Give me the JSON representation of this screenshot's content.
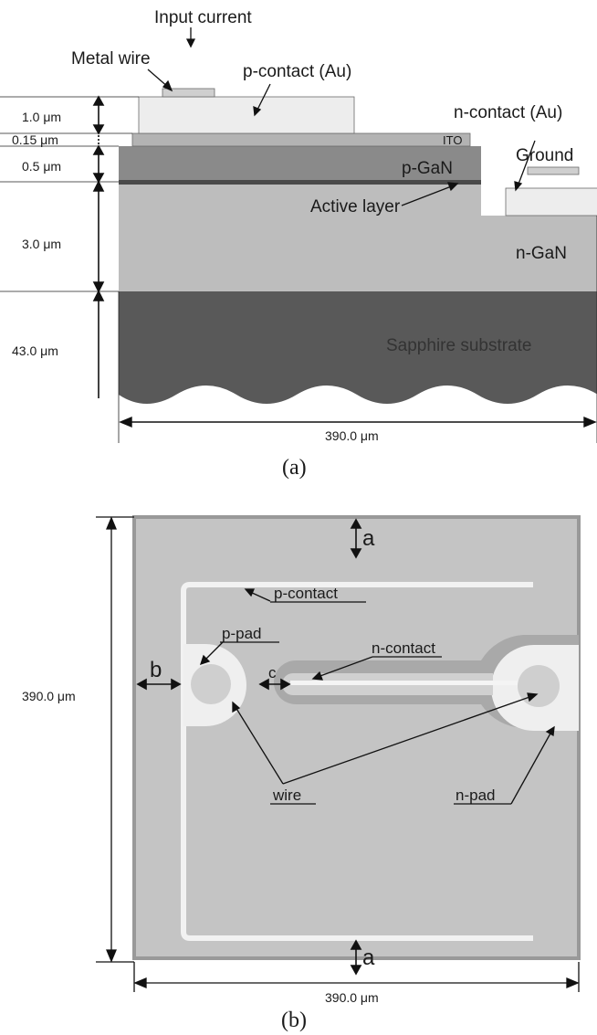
{
  "panel_a": {
    "caption": "(a)",
    "labels": {
      "input_current": "Input current",
      "metal_wire": "Metal  wire",
      "p_contact": "p-contact (Au)",
      "n_contact": "n-contact (Au)",
      "ito": "ITO",
      "ground": "Ground",
      "p_gan": "p-GaN",
      "active_layer": "Active layer",
      "n_gan": "n-GaN",
      "sapphire": "Sapphire substrate"
    },
    "thickness_labels": [
      "1.0 μm",
      "0.15 μm",
      "0.5 μm",
      "3.0 μm",
      "43.0 μm"
    ],
    "width_label": "390.0 μm"
  },
  "panel_b": {
    "caption": "(b)",
    "labels": {
      "p_contact": "p-contact",
      "p_pad": "p-pad",
      "n_contact": "n-contact",
      "wire": "wire",
      "n_pad": "n-pad",
      "a_top": "a",
      "a_bottom": "a",
      "b": "b",
      "c": "c"
    },
    "height_label": "390.0 μm",
    "width_label": "390.0 μm"
  },
  "colors": {
    "sapphire": "#595959",
    "n_gan": "#bdbdbd",
    "p_gan": "#8a8a8a",
    "active": "#4a4a4a",
    "ito": "#b3b3b3",
    "contact": "#ededed",
    "chip": "#c4c4c4",
    "trench": "#a6a6a6",
    "pad_light": "#efefef",
    "pad_center": "#cfcfcf"
  }
}
